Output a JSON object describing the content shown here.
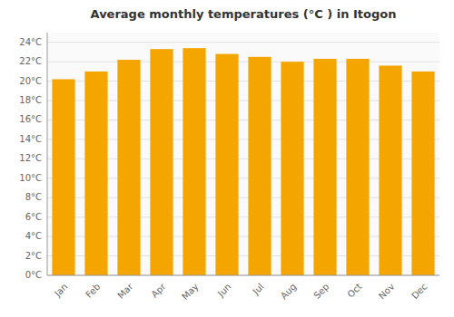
{
  "chart_data": {
    "type": "bar",
    "title": "Average monthly temperatures (°C ) in Itogon",
    "categories": [
      "Jan",
      "Feb",
      "Mar",
      "Apr",
      "May",
      "Jun",
      "Jul",
      "Aug",
      "Sep",
      "Oct",
      "Nov",
      "Dec"
    ],
    "values": [
      20.2,
      21.0,
      22.2,
      23.3,
      23.4,
      22.8,
      22.5,
      22.0,
      22.3,
      22.3,
      21.6,
      21.0
    ],
    "color": "#F5A500",
    "ylim": [
      0,
      25
    ],
    "yticks": [
      {
        "value": 0,
        "label": "0°C"
      },
      {
        "value": 2,
        "label": "2°C"
      },
      {
        "value": 4,
        "label": "4°C"
      },
      {
        "value": 6,
        "label": "6°C"
      },
      {
        "value": 8,
        "label": "8°C"
      },
      {
        "value": 10,
        "label": "10°C"
      },
      {
        "value": 12,
        "label": "12°C"
      },
      {
        "value": 14,
        "label": "14°C"
      },
      {
        "value": 16,
        "label": "16°C"
      },
      {
        "value": 18,
        "label": "18°C"
      },
      {
        "value": 20,
        "label": "20°C"
      },
      {
        "value": 22,
        "label": "22°C"
      },
      {
        "value": 24,
        "label": "24°C"
      }
    ],
    "grid": true
  }
}
